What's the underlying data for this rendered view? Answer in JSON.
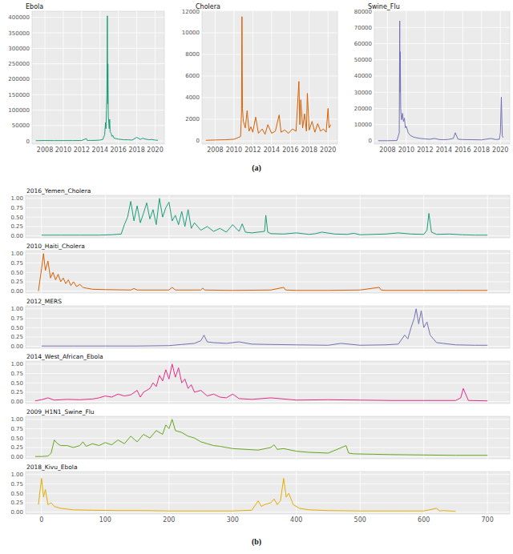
{
  "panel_labels": [
    "(a)",
    "(b)"
  ],
  "chart_data": [
    {
      "type": "line",
      "title": "Ebola",
      "color": "#1b9e77",
      "grid": true,
      "xlim": [
        2006.6,
        2021
      ],
      "ylim": [
        -10000,
        420000
      ],
      "xticks": [
        2008,
        2010,
        2012,
        2014,
        2016,
        2018,
        2020
      ],
      "yticks": [
        0,
        50000,
        100000,
        150000,
        200000,
        250000,
        300000,
        350000,
        400000
      ],
      "x": [
        2007.0,
        2008,
        2009,
        2010,
        2011,
        2012,
        2012.5,
        2012.6,
        2013,
        2013.5,
        2014.0,
        2014.3,
        2014.5,
        2014.6,
        2014.65,
        2014.7,
        2014.75,
        2014.78,
        2014.8,
        2014.83,
        2014.86,
        2014.9,
        2014.95,
        2015.0,
        2015.05,
        2015.1,
        2015.2,
        2015.3,
        2015.4,
        2015.5,
        2015.7,
        2016.0,
        2016.3,
        2016.6,
        2017.0,
        2017.5,
        2018.0,
        2018.4,
        2018.6,
        2019.0,
        2019.3,
        2019.6,
        2020.0,
        2020.3
      ],
      "values": [
        1000,
        1500,
        1200,
        1300,
        1400,
        1500,
        8000,
        2000,
        1800,
        2000,
        3000,
        5000,
        20000,
        60000,
        40000,
        100000,
        150000,
        300000,
        405000,
        120000,
        250000,
        80000,
        60000,
        40000,
        70000,
        30000,
        25000,
        15000,
        18000,
        10000,
        8000,
        6000,
        5000,
        4000,
        4000,
        3000,
        12000,
        5000,
        9000,
        6000,
        4000,
        5000,
        3000,
        2000
      ]
    },
    {
      "type": "line",
      "title": "Cholera",
      "color": "#d95f02",
      "grid": true,
      "xlim": [
        2006.6,
        2021
      ],
      "ylim": [
        -300,
        12000
      ],
      "xticks": [
        2008,
        2010,
        2012,
        2014,
        2016,
        2018,
        2020
      ],
      "yticks": [
        0,
        2000,
        4000,
        6000,
        8000,
        10000,
        12000
      ],
      "x": [
        2007,
        2008,
        2009,
        2010,
        2010.7,
        2010.8,
        2010.85,
        2010.9,
        2011.0,
        2011.2,
        2011.4,
        2011.6,
        2011.8,
        2012.0,
        2012.3,
        2012.6,
        2013.0,
        2013.3,
        2013.6,
        2014.0,
        2014.4,
        2014.8,
        2015.0,
        2015.4,
        2015.8,
        2016.2,
        2016.6,
        2016.9,
        2017.0,
        2017.1,
        2017.3,
        2017.5,
        2017.7,
        2017.8,
        2018.0,
        2018.3,
        2018.6,
        2018.9,
        2019.2,
        2019.5,
        2019.8,
        2020.0,
        2020.1,
        2020.3
      ],
      "values": [
        50,
        80,
        100,
        150,
        400,
        2600,
        11500,
        3000,
        1800,
        1200,
        2800,
        900,
        1300,
        800,
        2200,
        700,
        1100,
        600,
        1500,
        700,
        900,
        2400,
        800,
        1000,
        700,
        1100,
        900,
        5500,
        1500,
        3800,
        1200,
        2500,
        900,
        4400,
        1000,
        1800,
        800,
        1600,
        900,
        1100,
        800,
        3000,
        1200,
        1500
      ]
    },
    {
      "type": "line",
      "title": "Swine_Flu",
      "color": "#7570b3",
      "grid": true,
      "xlim": [
        2006.6,
        2021
      ],
      "ylim": [
        -2000,
        80000
      ],
      "xticks": [
        2008,
        2010,
        2012,
        2014,
        2016,
        2018,
        2020
      ],
      "yticks": [
        0,
        10000,
        20000,
        30000,
        40000,
        50000,
        60000,
        70000,
        80000
      ],
      "x": [
        2007,
        2008,
        2009.0,
        2009.25,
        2009.3,
        2009.33,
        2009.36,
        2009.4,
        2009.45,
        2009.5,
        2009.6,
        2009.7,
        2009.8,
        2009.9,
        2010.0,
        2010.2,
        2010.4,
        2010.7,
        2011.0,
        2011.5,
        2012.0,
        2012.5,
        2013.0,
        2013.5,
        2014.0,
        2014.5,
        2015.0,
        2015.2,
        2015.5,
        2016.0,
        2017.0,
        2018.0,
        2019.0,
        2019.5,
        2019.9,
        2020.0,
        2020.1,
        2020.2,
        2020.3
      ],
      "values": [
        100,
        100,
        200,
        5000,
        74000,
        30000,
        55000,
        20000,
        16000,
        13000,
        17000,
        12000,
        14000,
        8000,
        9000,
        5000,
        3500,
        2500,
        2000,
        1500,
        1200,
        1000,
        1500,
        800,
        700,
        900,
        1500,
        5000,
        1000,
        800,
        700,
        600,
        1500,
        800,
        1000,
        5000,
        27000,
        3000,
        2000
      ]
    },
    {
      "type": "line",
      "title": "2016_Yemen_Cholera",
      "color": "#1b9e77",
      "grid": true,
      "tick_labels": "y",
      "xlim": [
        -25,
        735
      ],
      "ylim": [
        -0.05,
        1.08
      ],
      "xticks": [
        0,
        100,
        200,
        300,
        400,
        500,
        600,
        700
      ],
      "yticks": [
        {
          "value": 0,
          "label": "0.00"
        },
        {
          "value": 0.25,
          "label": "0.25"
        },
        {
          "value": 0.5,
          "label": "0.50"
        },
        {
          "value": 0.75,
          "label": "0.75"
        },
        {
          "value": 1,
          "label": "1.00"
        }
      ],
      "x": [
        0,
        30,
        60,
        90,
        110,
        125,
        130,
        135,
        140,
        145,
        150,
        155,
        160,
        165,
        170,
        175,
        180,
        185,
        190,
        195,
        200,
        205,
        210,
        215,
        220,
        225,
        230,
        235,
        240,
        250,
        260,
        270,
        280,
        290,
        300,
        310,
        315,
        320,
        330,
        340,
        350,
        352,
        355,
        360,
        380,
        400,
        420,
        430,
        440,
        460,
        480,
        490,
        500,
        520,
        540,
        560,
        580,
        600,
        605,
        608,
        612,
        620,
        640,
        660,
        680,
        700
      ],
      "values": [
        0.02,
        0.02,
        0.02,
        0.02,
        0.03,
        0.05,
        0.3,
        0.5,
        0.92,
        0.4,
        0.8,
        0.35,
        0.6,
        0.88,
        0.45,
        0.7,
        0.3,
        1.0,
        0.5,
        0.75,
        0.9,
        0.4,
        0.55,
        0.3,
        0.65,
        0.25,
        0.7,
        0.2,
        0.35,
        0.15,
        0.25,
        0.12,
        0.2,
        0.1,
        0.3,
        0.12,
        0.32,
        0.1,
        0.08,
        0.1,
        0.12,
        0.55,
        0.1,
        0.06,
        0.05,
        0.08,
        0.04,
        0.06,
        0.1,
        0.05,
        0.04,
        0.07,
        0.03,
        0.04,
        0.05,
        0.08,
        0.05,
        0.04,
        0.15,
        0.6,
        0.1,
        0.04,
        0.05,
        0.03,
        0.02,
        0.02
      ]
    },
    {
      "type": "line",
      "title": "2010_Haiti_Cholera",
      "color": "#d95f02",
      "grid": true,
      "tick_labels": "y",
      "xlim": [
        -25,
        735
      ],
      "ylim": [
        -0.05,
        1.08
      ],
      "xticks": [
        0,
        100,
        200,
        300,
        400,
        500,
        600,
        700
      ],
      "yticks": [
        {
          "value": 0,
          "label": "0.00"
        },
        {
          "value": 0.25,
          "label": "0.25"
        },
        {
          "value": 0.5,
          "label": "0.50"
        },
        {
          "value": 0.75,
          "label": "0.75"
        },
        {
          "value": 1,
          "label": "1.00"
        }
      ],
      "x": [
        -5,
        0,
        3,
        6,
        10,
        14,
        18,
        22,
        26,
        30,
        34,
        38,
        42,
        46,
        50,
        55,
        60,
        65,
        70,
        80,
        100,
        140,
        145,
        150,
        200,
        205,
        210,
        250,
        253,
        256,
        300,
        360,
        380,
        383,
        400,
        450,
        500,
        530,
        533,
        540,
        600,
        650,
        700
      ],
      "values": [
        0.0,
        0.6,
        1.0,
        0.55,
        0.8,
        0.35,
        0.5,
        0.3,
        0.45,
        0.25,
        0.35,
        0.2,
        0.3,
        0.15,
        0.25,
        0.12,
        0.18,
        0.1,
        0.08,
        0.05,
        0.04,
        0.03,
        0.07,
        0.03,
        0.03,
        0.1,
        0.03,
        0.03,
        0.08,
        0.03,
        0.02,
        0.03,
        0.1,
        0.03,
        0.02,
        0.02,
        0.03,
        0.1,
        0.03,
        0.02,
        0.02,
        0.02,
        0.02
      ]
    },
    {
      "type": "line",
      "title": "2012_MERS",
      "color": "#7570b3",
      "grid": true,
      "tick_labels": "y",
      "xlim": [
        -25,
        735
      ],
      "ylim": [
        -0.05,
        1.08
      ],
      "xticks": [
        0,
        100,
        200,
        300,
        400,
        500,
        600,
        700
      ],
      "yticks": [
        {
          "value": 0,
          "label": "0.00"
        },
        {
          "value": 0.25,
          "label": "0.25"
        },
        {
          "value": 0.5,
          "label": "0.50"
        },
        {
          "value": 0.75,
          "label": "0.75"
        },
        {
          "value": 1,
          "label": "1.00"
        }
      ],
      "x": [
        0,
        50,
        100,
        150,
        200,
        220,
        240,
        250,
        255,
        260,
        270,
        290,
        310,
        330,
        360,
        400,
        450,
        470,
        500,
        540,
        560,
        570,
        575,
        580,
        585,
        588,
        592,
        596,
        600,
        605,
        610,
        615,
        620,
        630,
        650,
        680,
        700
      ],
      "values": [
        0.01,
        0.01,
        0.01,
        0.01,
        0.02,
        0.05,
        0.08,
        0.15,
        0.3,
        0.12,
        0.1,
        0.08,
        0.12,
        0.06,
        0.05,
        0.04,
        0.03,
        0.08,
        0.03,
        0.04,
        0.06,
        0.3,
        0.2,
        0.5,
        0.75,
        1.0,
        0.6,
        0.95,
        0.5,
        0.65,
        0.3,
        0.2,
        0.1,
        0.08,
        0.04,
        0.03,
        0.03
      ]
    },
    {
      "type": "line",
      "title": "2014_West_African_Ebola",
      "color": "#e7298a",
      "grid": true,
      "tick_labels": "y",
      "xlim": [
        -25,
        735
      ],
      "ylim": [
        -0.05,
        1.08
      ],
      "xticks": [
        0,
        100,
        200,
        300,
        400,
        500,
        600,
        700
      ],
      "yticks": [
        {
          "value": 0,
          "label": "0.00"
        },
        {
          "value": 0.25,
          "label": "0.25"
        },
        {
          "value": 0.5,
          "label": "0.50"
        },
        {
          "value": 0.75,
          "label": "0.75"
        },
        {
          "value": 1,
          "label": "1.00"
        }
      ],
      "x": [
        -10,
        0,
        10,
        20,
        40,
        60,
        80,
        90,
        100,
        110,
        120,
        130,
        140,
        150,
        155,
        160,
        170,
        175,
        180,
        185,
        190,
        195,
        200,
        205,
        210,
        215,
        220,
        225,
        230,
        235,
        240,
        250,
        260,
        270,
        280,
        290,
        300,
        310,
        330,
        360,
        400,
        450,
        500,
        550,
        600,
        650,
        658,
        662,
        670,
        700
      ],
      "values": [
        0.02,
        0.05,
        0.1,
        0.04,
        0.06,
        0.05,
        0.07,
        0.1,
        0.15,
        0.12,
        0.2,
        0.15,
        0.18,
        0.3,
        0.12,
        0.25,
        0.35,
        0.5,
        0.4,
        0.7,
        0.55,
        0.85,
        0.6,
        1.0,
        0.65,
        0.9,
        0.5,
        0.6,
        0.35,
        0.45,
        0.25,
        0.3,
        0.15,
        0.2,
        0.12,
        0.1,
        0.2,
        0.08,
        0.06,
        0.1,
        0.04,
        0.05,
        0.04,
        0.03,
        0.03,
        0.03,
        0.1,
        0.35,
        0.03,
        0.02
      ]
    },
    {
      "type": "line",
      "title": "2009_H1N1_Swine_Flu",
      "color": "#66a61e",
      "grid": true,
      "tick_labels": "y",
      "xlim": [
        -25,
        735
      ],
      "ylim": [
        -0.05,
        1.08
      ],
      "xticks": [
        0,
        100,
        200,
        300,
        400,
        500,
        600,
        700
      ],
      "yticks": [
        {
          "value": 0,
          "label": "0.00"
        },
        {
          "value": 0.25,
          "label": "0.25"
        },
        {
          "value": 0.5,
          "label": "0.50"
        },
        {
          "value": 0.75,
          "label": "0.75"
        },
        {
          "value": 1,
          "label": "1.00"
        }
      ],
      "x": [
        -10,
        0,
        10,
        15,
        20,
        25,
        30,
        40,
        50,
        60,
        65,
        70,
        80,
        90,
        100,
        110,
        120,
        130,
        140,
        150,
        160,
        170,
        180,
        190,
        195,
        200,
        205,
        210,
        220,
        230,
        240,
        250,
        260,
        270,
        280,
        300,
        320,
        340,
        360,
        365,
        370,
        380,
        400,
        420,
        450,
        478,
        482,
        490,
        520,
        550,
        600,
        650,
        700
      ],
      "values": [
        0.01,
        0.01,
        0.02,
        0.1,
        0.45,
        0.35,
        0.3,
        0.3,
        0.25,
        0.3,
        0.4,
        0.28,
        0.35,
        0.3,
        0.38,
        0.32,
        0.45,
        0.35,
        0.55,
        0.4,
        0.6,
        0.5,
        0.7,
        0.6,
        0.85,
        0.75,
        1.0,
        0.7,
        0.65,
        0.55,
        0.5,
        0.4,
        0.35,
        0.3,
        0.28,
        0.22,
        0.2,
        0.18,
        0.25,
        0.32,
        0.2,
        0.22,
        0.15,
        0.12,
        0.1,
        0.3,
        0.1,
        0.08,
        0.07,
        0.06,
        0.05,
        0.04,
        0.04
      ]
    },
    {
      "type": "line",
      "title": "2018_Kivu_Ebola",
      "color": "#e6ab02",
      "grid": true,
      "xlim": [
        -25,
        735
      ],
      "ylim": [
        -0.05,
        1.08
      ],
      "xticks": [
        0,
        100,
        200,
        300,
        400,
        500,
        600,
        700
      ],
      "yticks": [
        {
          "value": 0,
          "label": "0.00"
        },
        {
          "value": 0.25,
          "label": "0.25"
        },
        {
          "value": 0.5,
          "label": "0.50"
        },
        {
          "value": 0.75,
          "label": "0.75"
        },
        {
          "value": 1,
          "label": "1.00"
        }
      ],
      "x": [
        -5,
        0,
        3,
        6,
        10,
        15,
        20,
        30,
        50,
        80,
        120,
        160,
        200,
        250,
        300,
        330,
        340,
        345,
        350,
        360,
        365,
        370,
        375,
        380,
        384,
        388,
        395,
        405,
        420,
        450,
        500,
        550,
        600,
        620,
        625,
        630,
        650
      ],
      "values": [
        0.2,
        0.9,
        0.4,
        0.6,
        0.2,
        0.25,
        0.15,
        0.1,
        0.06,
        0.05,
        0.04,
        0.04,
        0.03,
        0.03,
        0.03,
        0.05,
        0.3,
        0.15,
        0.2,
        0.25,
        0.35,
        0.2,
        0.3,
        0.9,
        0.4,
        0.5,
        0.2,
        0.1,
        0.06,
        0.04,
        0.03,
        0.03,
        0.03,
        0.1,
        0.03,
        0.04,
        0.02
      ]
    }
  ]
}
